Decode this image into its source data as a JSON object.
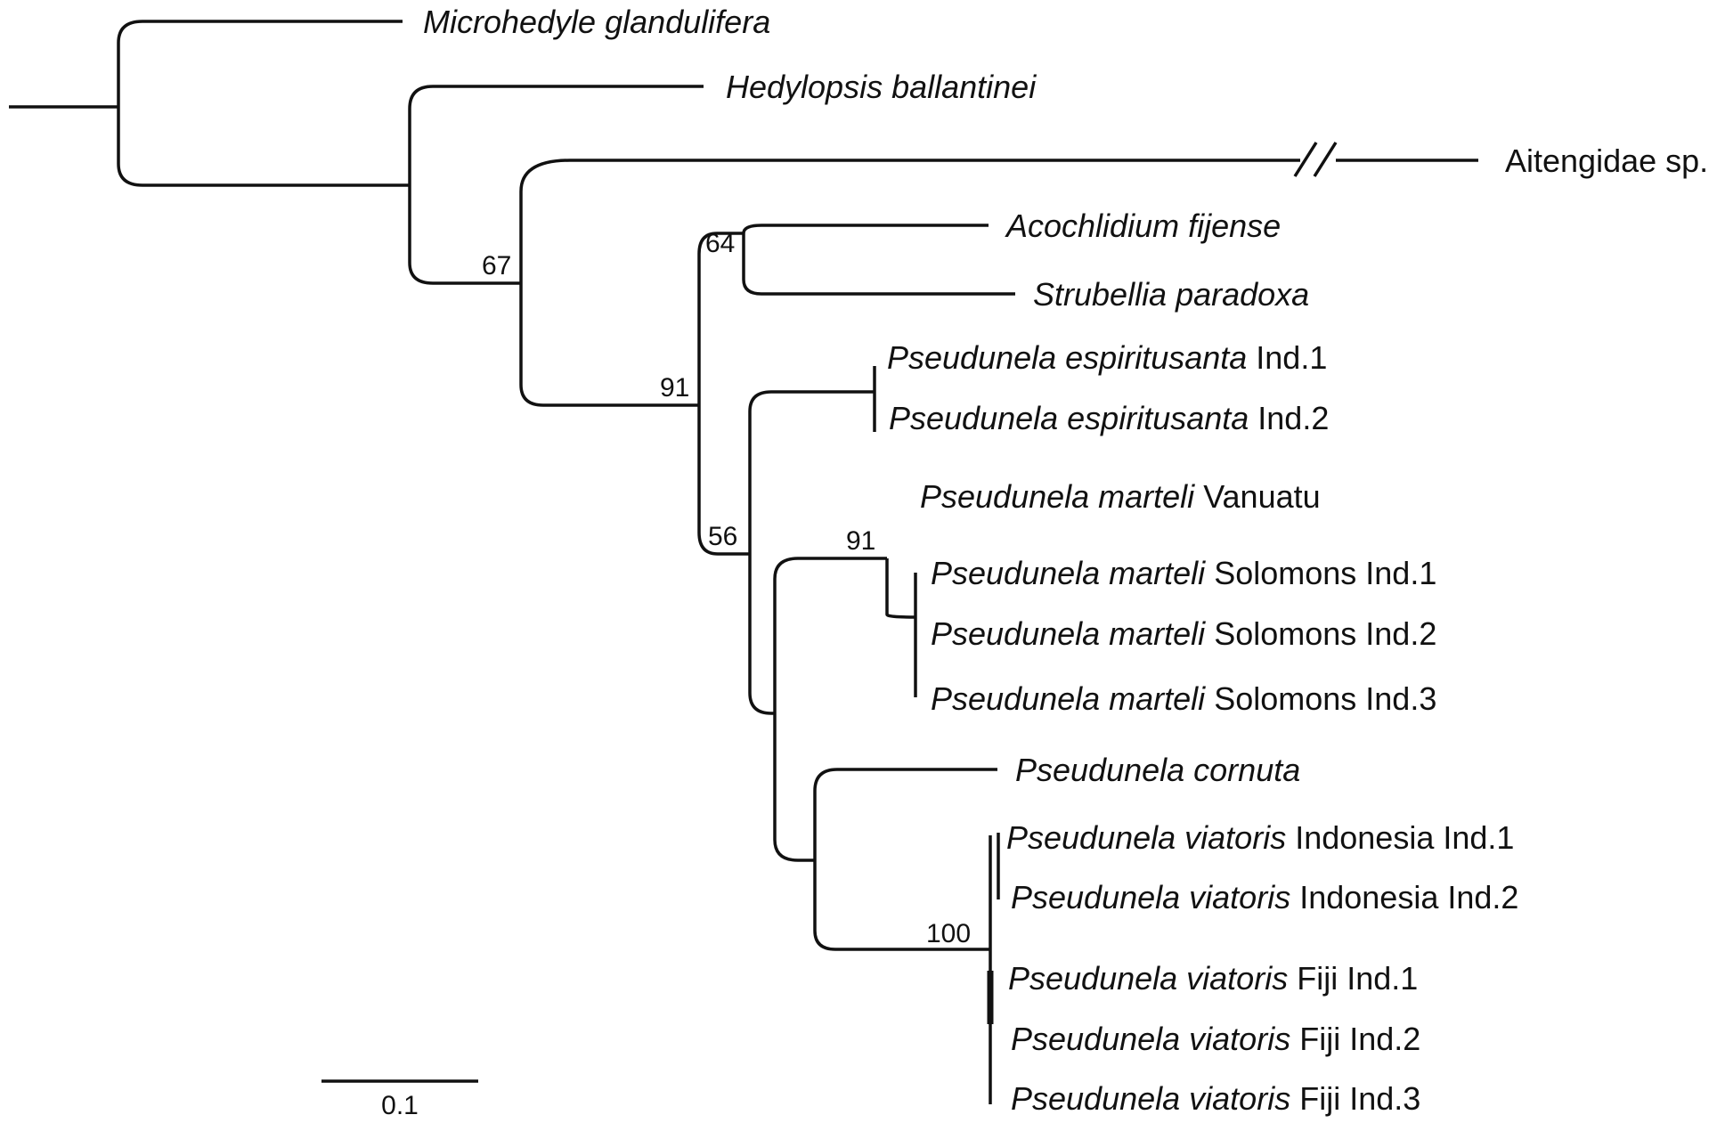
{
  "taxa": [
    {
      "genus": "Microhedyle glandulifera",
      "qualifier": ""
    },
    {
      "genus": "Hedylopsis ballantinei",
      "qualifier": ""
    },
    {
      "genus": "",
      "qualifier": "Aitengidae sp."
    },
    {
      "genus": "Acochlidium fijense",
      "qualifier": ""
    },
    {
      "genus": "Strubellia paradoxa",
      "qualifier": ""
    },
    {
      "genus": "Pseudunela espiritusanta",
      "qualifier": " Ind.1"
    },
    {
      "genus": "Pseudunela espiritusanta",
      "qualifier": " Ind.2"
    },
    {
      "genus": "Pseudunela marteli",
      "qualifier": " Vanuatu"
    },
    {
      "genus": "Pseudunela marteli",
      "qualifier": " Solomons Ind.1"
    },
    {
      "genus": "Pseudunela marteli",
      "qualifier": " Solomons Ind.2"
    },
    {
      "genus": "Pseudunela marteli",
      "qualifier": " Solomons Ind.3"
    },
    {
      "genus": "Pseudunela cornuta",
      "qualifier": ""
    },
    {
      "genus": "Pseudunela viatoris",
      "qualifier": " Indonesia Ind.1"
    },
    {
      "genus": "Pseudunela viatoris",
      "qualifier": " Indonesia Ind.2"
    },
    {
      "genus": "Pseudunela viatoris",
      "qualifier": " Fiji Ind.1"
    },
    {
      "genus": "Pseudunela viatoris",
      "qualifier": " Fiji Ind.2"
    },
    {
      "genus": "Pseudunela viatoris",
      "qualifier": " Fiji Ind.3"
    }
  ],
  "support_values": [
    "67",
    "64",
    "91",
    "56",
    "91",
    "100"
  ],
  "scale_bar": {
    "label": "0.1"
  }
}
